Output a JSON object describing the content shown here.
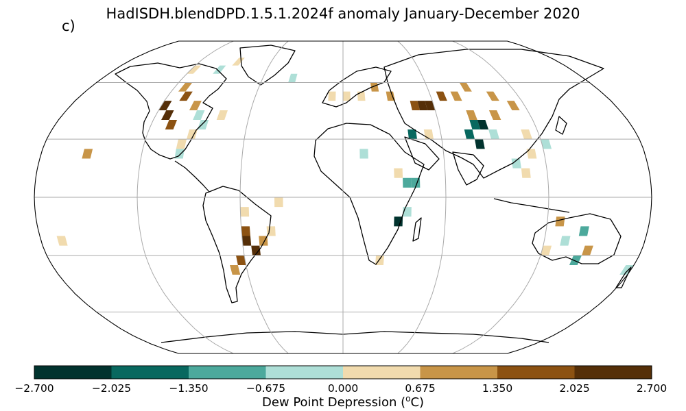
{
  "title": "HadISDH.blendDPD.1.5.1.2024f anomaly January-December 2020",
  "panel_label": "c)",
  "map": {
    "projection": "Robinson",
    "graticule_longitudes_deg": [
      -120,
      -60,
      0,
      60,
      120
    ],
    "graticule_latitudes_deg": [
      -60,
      -30,
      0,
      30,
      60
    ],
    "cell_size_deg": 5,
    "gridline_color": "#aaaaaa",
    "coastline_color": "#000000",
    "missing_color": "#ffffff",
    "anomaly_cells": [
      {
        "lat": 65,
        "lon": -120,
        "v": 0.3
      },
      {
        "lat": 65,
        "lon": -100,
        "v": -0.4
      },
      {
        "lat": 70,
        "lon": -90,
        "v": 0.4
      },
      {
        "lat": 60,
        "lon": -40,
        "v": -0.3
      },
      {
        "lat": 55,
        "lon": -115,
        "v": 0.9
      },
      {
        "lat": 50,
        "lon": -110,
        "v": 1.6
      },
      {
        "lat": 45,
        "lon": -120,
        "v": 2.2
      },
      {
        "lat": 40,
        "lon": -115,
        "v": 2.4
      },
      {
        "lat": 35,
        "lon": -110,
        "v": 1.7
      },
      {
        "lat": 45,
        "lon": -100,
        "v": 0.8
      },
      {
        "lat": 40,
        "lon": -95,
        "v": -0.4
      },
      {
        "lat": 35,
        "lon": -90,
        "v": -0.5
      },
      {
        "lat": 30,
        "lon": -95,
        "v": 0.4
      },
      {
        "lat": 40,
        "lon": -80,
        "v": 0.3
      },
      {
        "lat": 25,
        "lon": -100,
        "v": 0.5
      },
      {
        "lat": 20,
        "lon": -100,
        "v": -0.3
      },
      {
        "lat": 20,
        "lon": -155,
        "v": 0.8
      },
      {
        "lat": 50,
        "lon": -10,
        "v": 0.4
      },
      {
        "lat": 50,
        "lon": 0,
        "v": 0.5
      },
      {
        "lat": 50,
        "lon": 10,
        "v": 0.6
      },
      {
        "lat": 55,
        "lon": 20,
        "v": 0.7
      },
      {
        "lat": 50,
        "lon": 30,
        "v": 1.0
      },
      {
        "lat": 45,
        "lon": 45,
        "v": 1.8
      },
      {
        "lat": 45,
        "lon": 50,
        "v": 2.3
      },
      {
        "lat": 45,
        "lon": 55,
        "v": 2.6
      },
      {
        "lat": 50,
        "lon": 65,
        "v": 1.4
      },
      {
        "lat": 50,
        "lon": 75,
        "v": 1.0
      },
      {
        "lat": 55,
        "lon": 85,
        "v": 0.8
      },
      {
        "lat": 50,
        "lon": 100,
        "v": 0.9
      },
      {
        "lat": 45,
        "lon": 110,
        "v": 0.7
      },
      {
        "lat": 40,
        "lon": 95,
        "v": 1.2
      },
      {
        "lat": 35,
        "lon": 80,
        "v": -1.6
      },
      {
        "lat": 30,
        "lon": 75,
        "v": -1.4
      },
      {
        "lat": 25,
        "lon": 80,
        "v": -2.1
      },
      {
        "lat": 35,
        "lon": 85,
        "v": -2.1
      },
      {
        "lat": 30,
        "lon": 90,
        "v": -0.6
      },
      {
        "lat": 40,
        "lon": 80,
        "v": 1.1
      },
      {
        "lat": 30,
        "lon": 40,
        "v": -2.0
      },
      {
        "lat": 30,
        "lon": 50,
        "v": 0.4
      },
      {
        "lat": 20,
        "lon": 10,
        "v": -0.3
      },
      {
        "lat": 10,
        "lon": 30,
        "v": 0.6
      },
      {
        "lat": 5,
        "lon": 35,
        "v": -1.0
      },
      {
        "lat": 5,
        "lon": 40,
        "v": -0.8
      },
      {
        "lat": -15,
        "lon": 30,
        "v": -2.2
      },
      {
        "lat": -10,
        "lon": 35,
        "v": -0.5
      },
      {
        "lat": -25,
        "lon": -60,
        "v": 2.4
      },
      {
        "lat": -30,
        "lon": -55,
        "v": 2.5
      },
      {
        "lat": -20,
        "lon": -60,
        "v": 1.6
      },
      {
        "lat": -35,
        "lon": -65,
        "v": 1.4
      },
      {
        "lat": -25,
        "lon": -50,
        "v": 1.0
      },
      {
        "lat": -40,
        "lon": -70,
        "v": 0.8
      },
      {
        "lat": -10,
        "lon": -60,
        "v": 0.4
      },
      {
        "lat": -20,
        "lon": -45,
        "v": 0.5
      },
      {
        "lat": -30,
        "lon": 120,
        "v": 0.4
      },
      {
        "lat": -25,
        "lon": 130,
        "v": -0.4
      },
      {
        "lat": -20,
        "lon": 140,
        "v": -1.2
      },
      {
        "lat": -30,
        "lon": 145,
        "v": 1.1
      },
      {
        "lat": -35,
        "lon": 140,
        "v": -0.9
      },
      {
        "lat": -15,
        "lon": 125,
        "v": 1.0
      },
      {
        "lat": 10,
        "lon": 105,
        "v": 0.4
      },
      {
        "lat": 15,
        "lon": 100,
        "v": -0.5
      },
      {
        "lat": 20,
        "lon": 110,
        "v": 0.4
      },
      {
        "lat": 30,
        "lon": 110,
        "v": 0.5
      },
      {
        "lat": 25,
        "lon": 120,
        "v": -0.4
      },
      {
        "lat": -40,
        "lon": 175,
        "v": -0.5
      },
      {
        "lat": -5,
        "lon": -40,
        "v": 0.5
      },
      {
        "lat": -25,
        "lon": -170,
        "v": 0.5
      },
      {
        "lat": -35,
        "lon": 20,
        "v": 0.5
      }
    ]
  },
  "colorbar": {
    "label": "Dew Point Depression (°C)",
    "label_prefix": "Dew Point Depression (",
    "label_superscript": "o",
    "label_suffix": "C)",
    "ticks": [
      "−2.700",
      "−2.025",
      "−1.350",
      "−0.675",
      "0.000",
      "0.675",
      "1.350",
      "2.025",
      "2.700"
    ],
    "boundaries": [
      -2.7,
      -2.025,
      -1.35,
      -0.675,
      0.0,
      0.675,
      1.35,
      2.025,
      2.7
    ],
    "colors": [
      "#01332e",
      "#08685f",
      "#4ca99c",
      "#aedfd7",
      "#f1dbae",
      "#c89548",
      "#8c5212",
      "#552f08"
    ]
  }
}
